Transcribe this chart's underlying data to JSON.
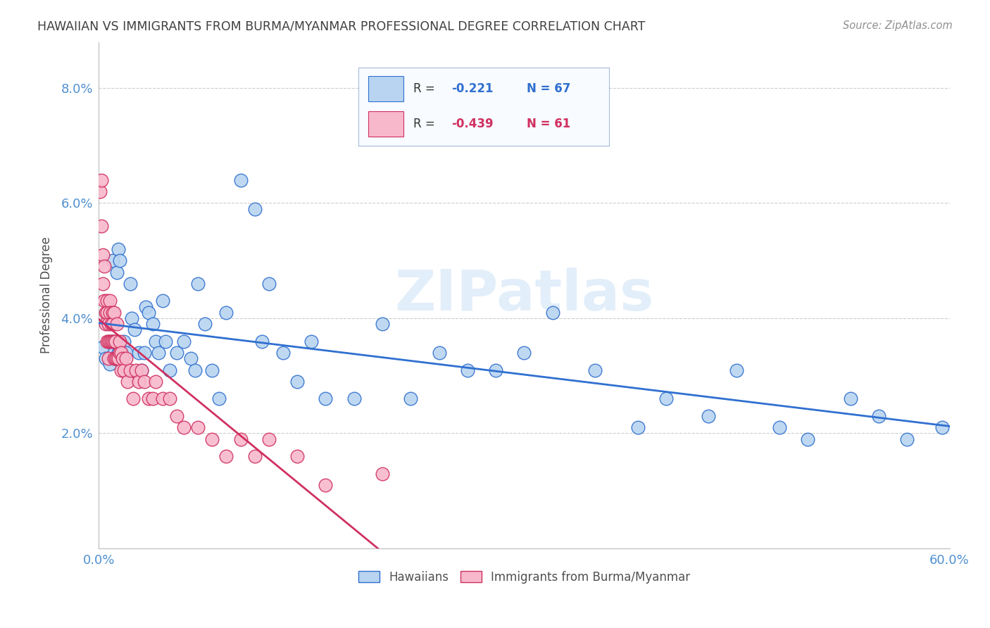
{
  "title": "HAWAIIAN VS IMMIGRANTS FROM BURMA/MYANMAR PROFESSIONAL DEGREE CORRELATION CHART",
  "source": "Source: ZipAtlas.com",
  "ylabel": "Professional Degree",
  "hawaiians_R": -0.221,
  "hawaiians_N": 67,
  "burma_R": -0.439,
  "burma_N": 61,
  "hawaiians_color": "#b8d4f0",
  "burma_color": "#f8b8cc",
  "hawaiians_line_color": "#3070d0",
  "burma_line_color": "#d03060",
  "background_color": "#ffffff",
  "grid_color": "#cccccc",
  "title_color": "#404040",
  "axis_label_color": "#5090d0",
  "watermark_text": "ZIPatlas",
  "xlim": [
    0.0,
    0.6
  ],
  "ylim": [
    0.0,
    0.088
  ],
  "ytick_values": [
    0.0,
    0.02,
    0.04,
    0.06,
    0.08
  ],
  "ytick_labels": [
    "",
    "2.0%",
    "4.0%",
    "6.0%",
    "8.0%"
  ],
  "xtick_values": [
    0.0,
    0.1,
    0.2,
    0.3,
    0.4,
    0.5,
    0.6
  ],
  "xtick_labels": [
    "0.0%",
    "",
    "",
    "",
    "",
    "",
    "60.0%"
  ],
  "hawaiians_x": [
    0.003,
    0.005,
    0.008,
    0.01,
    0.01,
    0.011,
    0.012,
    0.013,
    0.013,
    0.014,
    0.014,
    0.015,
    0.015,
    0.016,
    0.018,
    0.019,
    0.02,
    0.022,
    0.023,
    0.025,
    0.028,
    0.03,
    0.032,
    0.033,
    0.035,
    0.038,
    0.04,
    0.042,
    0.045,
    0.047,
    0.05,
    0.055,
    0.06,
    0.065,
    0.068,
    0.07,
    0.075,
    0.08,
    0.085,
    0.09,
    0.1,
    0.11,
    0.115,
    0.12,
    0.13,
    0.14,
    0.15,
    0.16,
    0.18,
    0.2,
    0.22,
    0.24,
    0.26,
    0.28,
    0.3,
    0.32,
    0.35,
    0.38,
    0.4,
    0.43,
    0.45,
    0.48,
    0.5,
    0.53,
    0.55,
    0.57,
    0.595
  ],
  "hawaiians_y": [
    0.035,
    0.033,
    0.032,
    0.036,
    0.05,
    0.034,
    0.033,
    0.036,
    0.048,
    0.034,
    0.052,
    0.05,
    0.035,
    0.033,
    0.036,
    0.034,
    0.031,
    0.046,
    0.04,
    0.038,
    0.034,
    0.031,
    0.034,
    0.042,
    0.041,
    0.039,
    0.036,
    0.034,
    0.043,
    0.036,
    0.031,
    0.034,
    0.036,
    0.033,
    0.031,
    0.046,
    0.039,
    0.031,
    0.026,
    0.041,
    0.064,
    0.059,
    0.036,
    0.046,
    0.034,
    0.029,
    0.036,
    0.026,
    0.026,
    0.039,
    0.026,
    0.034,
    0.031,
    0.031,
    0.034,
    0.041,
    0.031,
    0.021,
    0.026,
    0.023,
    0.031,
    0.021,
    0.019,
    0.026,
    0.023,
    0.019,
    0.021
  ],
  "burma_x": [
    0.001,
    0.002,
    0.002,
    0.003,
    0.003,
    0.004,
    0.004,
    0.005,
    0.005,
    0.006,
    0.006,
    0.006,
    0.007,
    0.007,
    0.007,
    0.008,
    0.008,
    0.008,
    0.009,
    0.009,
    0.01,
    0.01,
    0.01,
    0.011,
    0.011,
    0.011,
    0.012,
    0.012,
    0.013,
    0.013,
    0.014,
    0.015,
    0.015,
    0.016,
    0.016,
    0.017,
    0.018,
    0.019,
    0.02,
    0.022,
    0.024,
    0.026,
    0.028,
    0.03,
    0.032,
    0.035,
    0.038,
    0.04,
    0.045,
    0.05,
    0.055,
    0.06,
    0.07,
    0.08,
    0.09,
    0.1,
    0.11,
    0.12,
    0.14,
    0.16,
    0.2
  ],
  "burma_y": [
    0.062,
    0.056,
    0.064,
    0.051,
    0.046,
    0.049,
    0.043,
    0.041,
    0.039,
    0.043,
    0.041,
    0.036,
    0.039,
    0.036,
    0.033,
    0.043,
    0.041,
    0.036,
    0.039,
    0.036,
    0.041,
    0.039,
    0.036,
    0.041,
    0.036,
    0.033,
    0.033,
    0.036,
    0.033,
    0.039,
    0.033,
    0.034,
    0.036,
    0.031,
    0.034,
    0.033,
    0.031,
    0.033,
    0.029,
    0.031,
    0.026,
    0.031,
    0.029,
    0.031,
    0.029,
    0.026,
    0.026,
    0.029,
    0.026,
    0.026,
    0.023,
    0.021,
    0.021,
    0.019,
    0.016,
    0.019,
    0.016,
    0.019,
    0.016,
    0.011,
    0.013
  ]
}
